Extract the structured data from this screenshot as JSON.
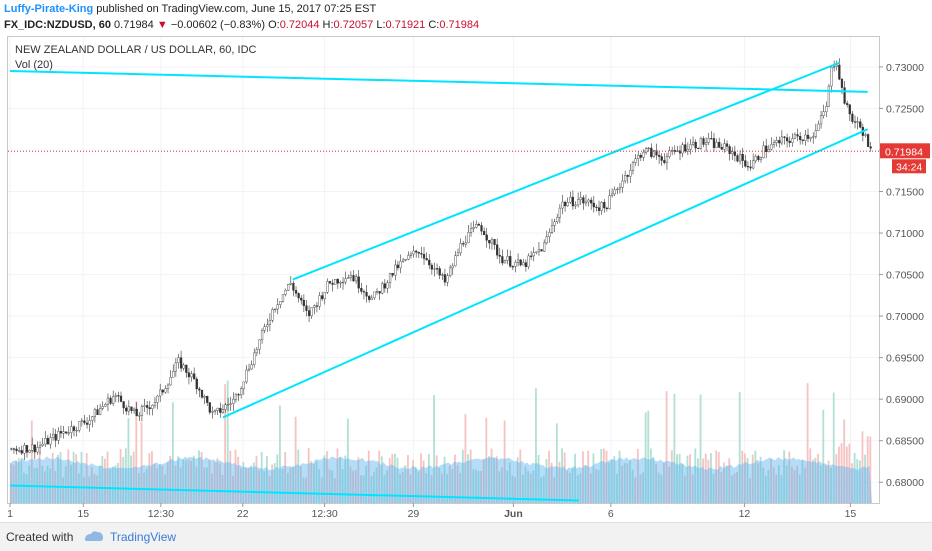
{
  "header": {
    "author": "Luffy-Pirate-King",
    "published_text": "published on TradingView.com, June 15, 2017 07:25 EST",
    "symbol": "FX_IDC:NZDUSD, 60",
    "last": "0.71984",
    "arrow": "▼",
    "change": "−0.00602 (−0.83%)",
    "o_label": "O:",
    "o_value": "0.72044",
    "h_label": "H:",
    "h_value": "0.72057",
    "l_label": "L:",
    "l_value": "0.71921",
    "c_label": "C:",
    "c_value": "0.71984"
  },
  "legend": {
    "title": "NEW ZEALAND DOLLAR / US DOLLAR, 60, IDC",
    "volume": "Vol (20)"
  },
  "price_tag": {
    "value": "0.71984",
    "countdown": "34:24"
  },
  "footer": {
    "created": "Created with",
    "brand": "TradingView"
  },
  "colors": {
    "up": "#26a69a",
    "down": "#ef5350",
    "trendline": "#00e5ff",
    "volume_ma": "#5ab4f0",
    "price_tag": "#e53935"
  },
  "chart_data": {
    "type": "candlestick",
    "instrument": "NZDUSD",
    "interval": "60",
    "ylim": [
      0.6775,
      0.7336
    ],
    "y_ticks": [
      "0.73000",
      "0.72500",
      "0.72000",
      "0.71500",
      "0.71000",
      "0.70500",
      "0.70000",
      "0.69500",
      "0.69000",
      "0.68500",
      "0.68000"
    ],
    "x_ticks": [
      "1",
      "15",
      "12:30",
      "22",
      "12:30",
      "29",
      "Jun",
      "6",
      "12",
      "15"
    ],
    "last_price": 0.71984,
    "trend_start": 0.684,
    "price_path": [
      [
        0,
        0.684
      ],
      [
        0.03,
        0.6842
      ],
      [
        0.06,
        0.686
      ],
      [
        0.09,
        0.6875
      ],
      [
        0.12,
        0.6905
      ],
      [
        0.145,
        0.688
      ],
      [
        0.17,
        0.69
      ],
      [
        0.195,
        0.6945
      ],
      [
        0.215,
        0.692
      ],
      [
        0.235,
        0.688
      ],
      [
        0.26,
        0.69
      ],
      [
        0.285,
        0.696
      ],
      [
        0.305,
        0.701
      ],
      [
        0.325,
        0.704
      ],
      [
        0.345,
        0.7
      ],
      [
        0.37,
        0.704
      ],
      [
        0.395,
        0.705
      ],
      [
        0.42,
        0.702
      ],
      [
        0.45,
        0.706
      ],
      [
        0.475,
        0.708
      ],
      [
        0.505,
        0.704
      ],
      [
        0.525,
        0.709
      ],
      [
        0.545,
        0.711
      ],
      [
        0.57,
        0.707
      ],
      [
        0.595,
        0.706
      ],
      [
        0.62,
        0.7085
      ],
      [
        0.64,
        0.7135
      ],
      [
        0.66,
        0.714
      ],
      [
        0.69,
        0.713
      ],
      [
        0.715,
        0.717
      ],
      [
        0.735,
        0.72
      ],
      [
        0.76,
        0.719
      ],
      [
        0.785,
        0.7205
      ],
      [
        0.81,
        0.721
      ],
      [
        0.835,
        0.72
      ],
      [
        0.86,
        0.718
      ],
      [
        0.875,
        0.72
      ],
      [
        0.895,
        0.721
      ],
      [
        0.915,
        0.7215
      ],
      [
        0.935,
        0.722
      ],
      [
        0.948,
        0.725
      ],
      [
        0.955,
        0.73
      ],
      [
        0.96,
        0.731
      ],
      [
        0.966,
        0.7275
      ],
      [
        0.972,
        0.725
      ],
      [
        0.98,
        0.7235
      ],
      [
        0.99,
        0.7225
      ],
      [
        1.0,
        0.71984
      ]
    ],
    "trendlines": [
      {
        "name": "upper-channel",
        "from": [
          0.328,
          0.7044
        ],
        "to": [
          0.962,
          0.7305
        ]
      },
      {
        "name": "lower-channel",
        "from": [
          0.247,
          0.6878
        ],
        "to": [
          0.995,
          0.7225
        ]
      },
      {
        "name": "resistance",
        "from": [
          0.0,
          0.7295
        ],
        "to": [
          0.995,
          0.727
        ]
      },
      {
        "name": "bottom-line",
        "from": [
          0.0,
          0.6796
        ],
        "to": [
          0.66,
          0.6778
        ]
      }
    ]
  }
}
